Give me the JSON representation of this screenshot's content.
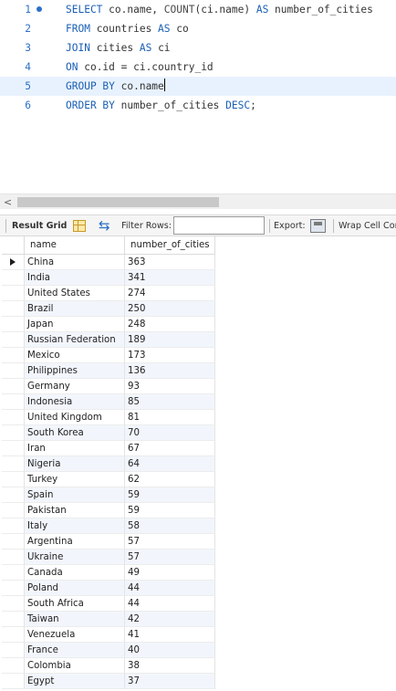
{
  "editor": {
    "active_line": 5,
    "lines": [
      {
        "num": "1",
        "tokens": [
          {
            "t": "SELECT",
            "k": 1
          },
          {
            "t": " co.name, ",
            "k": 0
          },
          {
            "t": "COUNT",
            "k": 2
          },
          {
            "t": "(ci.name) ",
            "k": 0
          },
          {
            "t": "AS",
            "k": 1
          },
          {
            "t": " number_of_cities",
            "k": 0
          }
        ]
      },
      {
        "num": "2",
        "tokens": [
          {
            "t": "FROM",
            "k": 1
          },
          {
            "t": " countries ",
            "k": 0
          },
          {
            "t": "AS",
            "k": 1
          },
          {
            "t": " co",
            "k": 0
          }
        ]
      },
      {
        "num": "3",
        "tokens": [
          {
            "t": "JOIN",
            "k": 1
          },
          {
            "t": " cities ",
            "k": 0
          },
          {
            "t": "AS",
            "k": 1
          },
          {
            "t": " ci",
            "k": 0
          }
        ]
      },
      {
        "num": "4",
        "tokens": [
          {
            "t": "ON",
            "k": 1
          },
          {
            "t": " co.id = ci.country_id",
            "k": 0
          }
        ]
      },
      {
        "num": "5",
        "tokens": [
          {
            "t": "GROUP BY",
            "k": 1
          },
          {
            "t": " co.name",
            "k": 0
          }
        ]
      },
      {
        "num": "6",
        "tokens": [
          {
            "t": "ORDER BY",
            "k": 1
          },
          {
            "t": " number_of_cities ",
            "k": 0
          },
          {
            "t": "DESC",
            "k": 1
          },
          {
            "t": ";",
            "k": 0
          }
        ]
      }
    ]
  },
  "scrollbar": {
    "left_arrow": "<"
  },
  "toolbar": {
    "result_grid_label": "Result Grid",
    "filter_label": "Filter Rows:",
    "filter_value": "",
    "export_label": "Export:",
    "wrap_label": "Wrap Cell Con"
  },
  "grid": {
    "columns": [
      "name",
      "number_of_cities"
    ],
    "rows": [
      [
        "China",
        "363"
      ],
      [
        "India",
        "341"
      ],
      [
        "United States",
        "274"
      ],
      [
        "Brazil",
        "250"
      ],
      [
        "Japan",
        "248"
      ],
      [
        "Russian Federation",
        "189"
      ],
      [
        "Mexico",
        "173"
      ],
      [
        "Philippines",
        "136"
      ],
      [
        "Germany",
        "93"
      ],
      [
        "Indonesia",
        "85"
      ],
      [
        "United Kingdom",
        "81"
      ],
      [
        "South Korea",
        "70"
      ],
      [
        "Iran",
        "67"
      ],
      [
        "Nigeria",
        "64"
      ],
      [
        "Turkey",
        "62"
      ],
      [
        "Spain",
        "59"
      ],
      [
        "Pakistan",
        "59"
      ],
      [
        "Italy",
        "58"
      ],
      [
        "Argentina",
        "57"
      ],
      [
        "Ukraine",
        "57"
      ],
      [
        "Canada",
        "49"
      ],
      [
        "Poland",
        "44"
      ],
      [
        "South Africa",
        "44"
      ],
      [
        "Taiwan",
        "42"
      ],
      [
        "Venezuela",
        "41"
      ],
      [
        "France",
        "40"
      ],
      [
        "Colombia",
        "38"
      ],
      [
        "Egypt",
        "37"
      ]
    ]
  },
  "colors": {
    "keyword": "#1a5fb4",
    "line_number": "#2b70c8",
    "active_line_bg": "#e8f2fe"
  }
}
